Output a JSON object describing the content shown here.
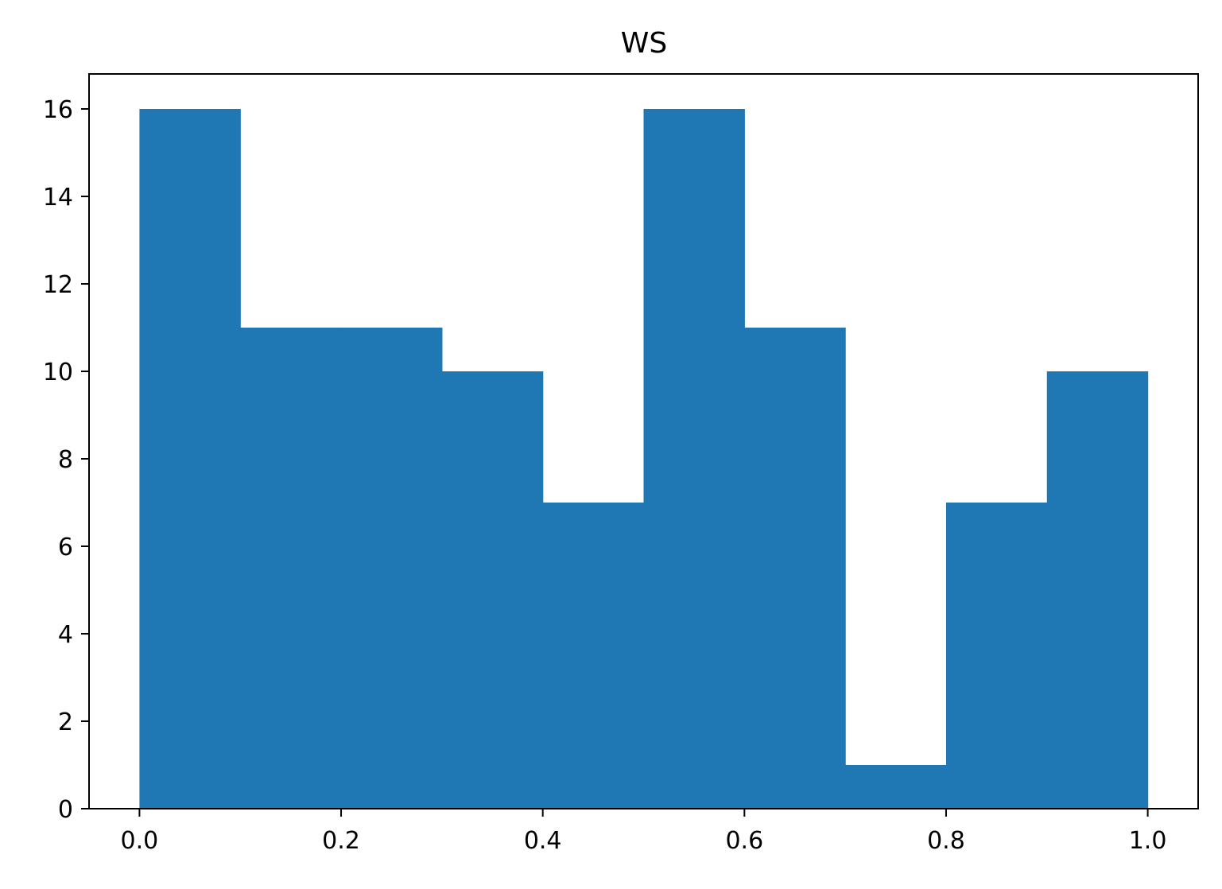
{
  "chart_data": {
    "type": "bar",
    "title": "WS",
    "xlabel": "",
    "ylabel": "",
    "bins": [
      {
        "x0": 0.0,
        "x1": 0.1,
        "count": 16
      },
      {
        "x0": 0.1,
        "x1": 0.2,
        "count": 11
      },
      {
        "x0": 0.2,
        "x1": 0.3,
        "count": 11
      },
      {
        "x0": 0.3,
        "x1": 0.4,
        "count": 10
      },
      {
        "x0": 0.4,
        "x1": 0.5,
        "count": 7
      },
      {
        "x0": 0.5,
        "x1": 0.6,
        "count": 16
      },
      {
        "x0": 0.6,
        "x1": 0.7,
        "count": 11
      },
      {
        "x0": 0.7,
        "x1": 0.8,
        "count": 1
      },
      {
        "x0": 0.8,
        "x1": 0.9,
        "count": 7
      },
      {
        "x0": 0.9,
        "x1": 1.0,
        "count": 10
      }
    ],
    "xlim": [
      -0.05,
      1.05
    ],
    "ylim": [
      0,
      16.8
    ],
    "xticks": [
      0.0,
      0.2,
      0.4,
      0.6,
      0.8,
      1.0
    ],
    "xtick_labels": [
      "0.0",
      "0.2",
      "0.4",
      "0.6",
      "0.8",
      "1.0"
    ],
    "yticks": [
      0,
      2,
      4,
      6,
      8,
      10,
      12,
      14,
      16
    ],
    "ytick_labels": [
      "0",
      "2",
      "4",
      "6",
      "8",
      "10",
      "12",
      "14",
      "16"
    ],
    "bar_color": "#1f77b4",
    "grid": false,
    "legend": "none"
  }
}
